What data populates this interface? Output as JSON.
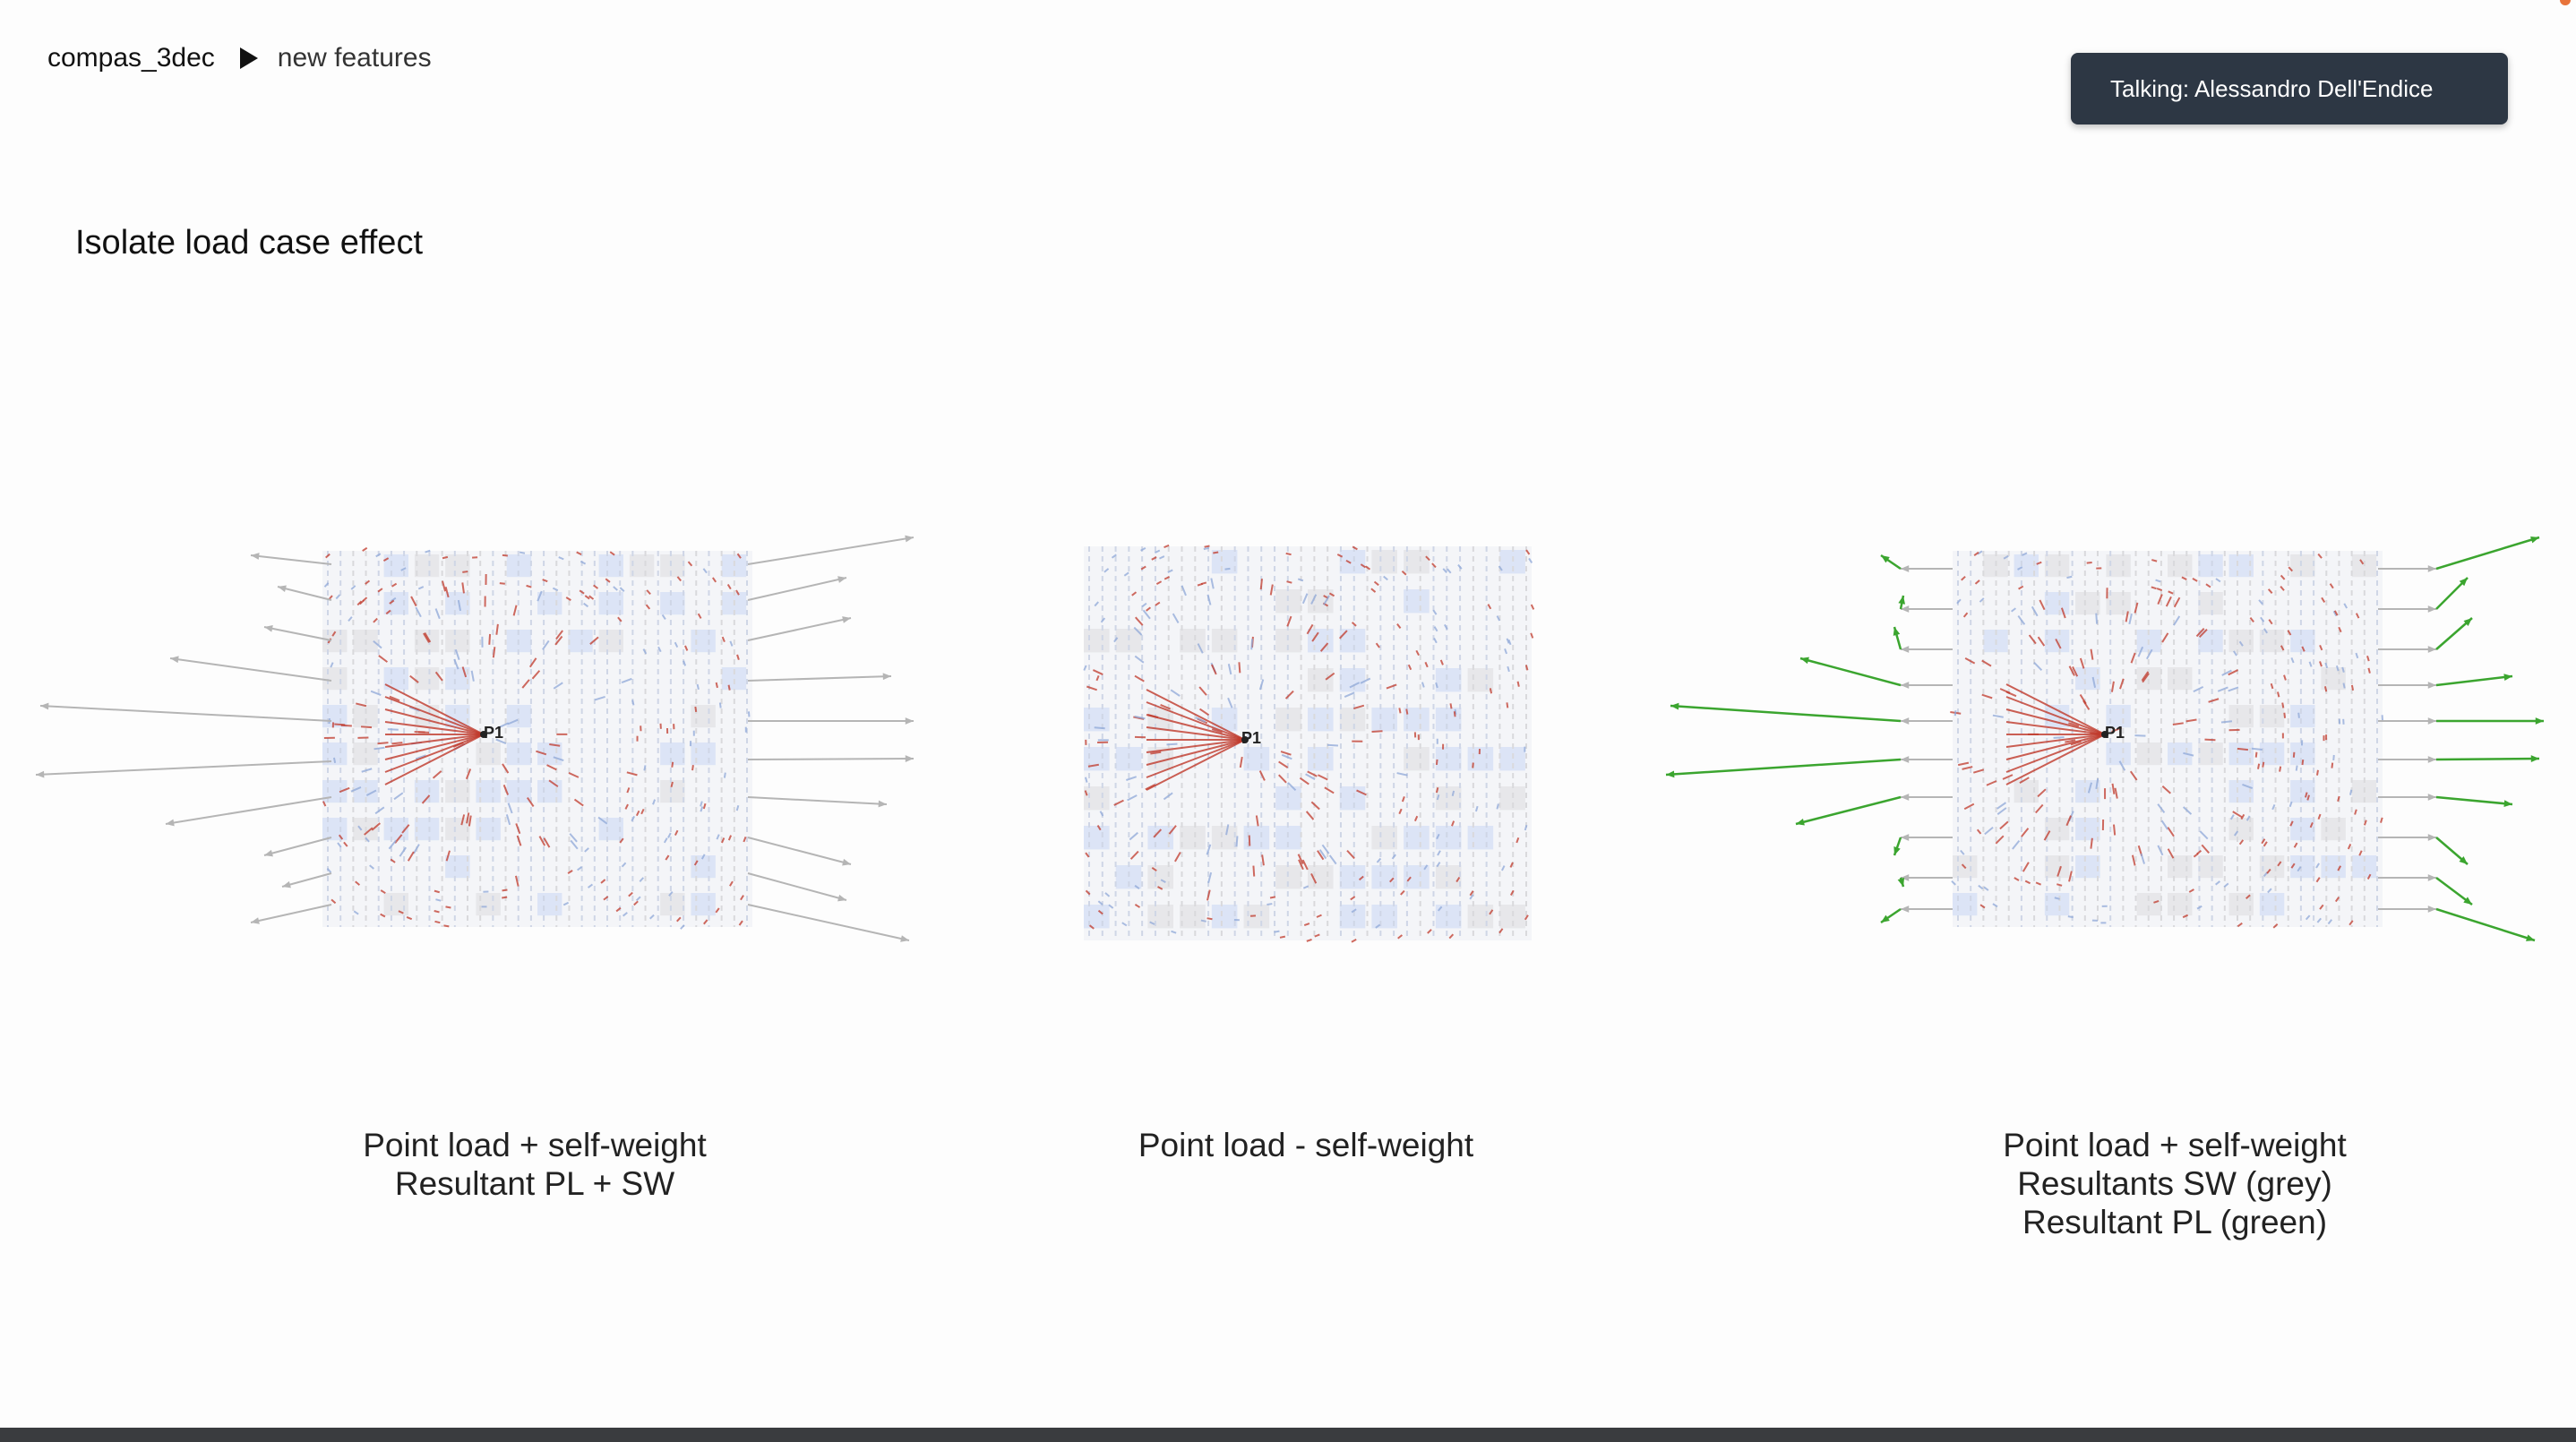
{
  "header": {
    "breadcrumb_root": "compas_3dec",
    "breadcrumb_separator_icon": "play-triangle-icon",
    "breadcrumb_current": "new features"
  },
  "notification": {
    "talking": "Talking: Alessandro Dell'Endice"
  },
  "slide": {
    "title": "Isolate load case effect",
    "panels": [
      {
        "image_label": "P1",
        "caption": [
          "Point load + self-weight",
          "Resultant PL + SW"
        ],
        "arrows": "grey"
      },
      {
        "image_label": "P1",
        "caption": [
          "Point load - self-weight"
        ],
        "arrows": "none"
      },
      {
        "image_label": "P1",
        "caption": [
          "Point load + self-weight",
          "Resultants SW (grey)",
          "Resultant PL (green)"
        ],
        "arrows": "grey+green"
      }
    ]
  },
  "colors": {
    "grey_resultant": "#b5b5b5",
    "green_resultant": "#3ba52f",
    "crack_red": "#c0392b",
    "block_blue": "#d6e0f5",
    "talking_bg": "#2d3744"
  }
}
